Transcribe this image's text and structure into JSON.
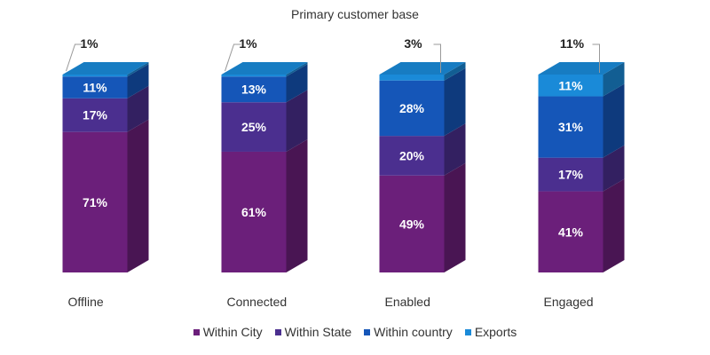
{
  "chart_data": {
    "type": "bar",
    "stacked": true,
    "title": "Primary customer base",
    "categories": [
      "Offline",
      "Connected",
      "Enabled",
      "Engaged"
    ],
    "series": [
      {
        "name": "Within City",
        "color": "#6b1f7a",
        "values": [
          71,
          61,
          49,
          41
        ]
      },
      {
        "name": "Within State",
        "color": "#4b2f8f",
        "values": [
          17,
          25,
          20,
          17
        ]
      },
      {
        "name": "Within country",
        "color": "#1556b8",
        "values": [
          11,
          13,
          28,
          31
        ]
      },
      {
        "name": "Exports",
        "color": "#1a8ad8",
        "values": [
          1,
          1,
          3,
          11
        ]
      }
    ],
    "value_format": "{v}%",
    "legend_position": "bottom",
    "ylim": [
      0,
      100
    ],
    "grid": false
  }
}
